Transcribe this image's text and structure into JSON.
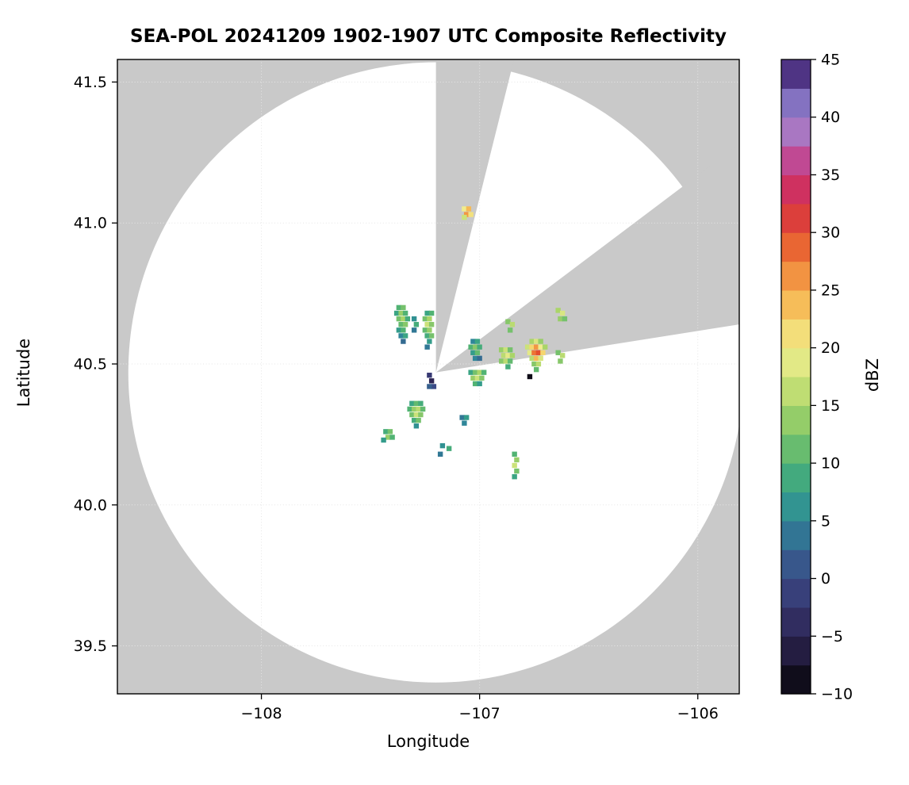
{
  "chart_data": {
    "type": "heatmap",
    "title": "SEA-POL 20241209 1902-1907 UTC Composite Reflectivity",
    "xlabel": "Longitude",
    "ylabel": "Latitude",
    "xlim": [
      -108.66,
      -105.81
    ],
    "ylim": [
      39.33,
      41.58
    ],
    "grid": true,
    "xticks": [
      {
        "v": -108,
        "label": "−108"
      },
      {
        "v": -107,
        "label": "−107"
      },
      {
        "v": -106,
        "label": "−106"
      }
    ],
    "yticks": [
      {
        "v": 39.5,
        "label": "39.5"
      },
      {
        "v": 40.0,
        "label": "40.0"
      },
      {
        "v": 40.5,
        "label": "40.5"
      },
      {
        "v": 41.0,
        "label": "41.0"
      },
      {
        "v": 41.5,
        "label": "41.5"
      }
    ],
    "background_outside_range": "#c9c9c9",
    "background_inside_range": "#ffffff",
    "radar": {
      "center_lon": -107.2,
      "center_lat": 40.47,
      "range_lon_deg": 1.41,
      "range_lat_deg": 1.1,
      "blocked_sectors_azimuth_deg": [
        [
          0,
          14
        ],
        [
          53,
          81
        ]
      ]
    },
    "colorbar": {
      "label": "dBZ",
      "min": -10,
      "max": 45,
      "step": 2.5,
      "ticks": [
        {
          "v": -10,
          "label": "−10"
        },
        {
          "v": -5,
          "label": "−5"
        },
        {
          "v": 0,
          "label": "0"
        },
        {
          "v": 5,
          "label": "5"
        },
        {
          "v": 10,
          "label": "10"
        },
        {
          "v": 15,
          "label": "15"
        },
        {
          "v": 20,
          "label": "20"
        },
        {
          "v": 25,
          "label": "25"
        },
        {
          "v": 30,
          "label": "30"
        },
        {
          "v": 35,
          "label": "35"
        },
        {
          "v": 40,
          "label": "40"
        },
        {
          "v": 45,
          "label": "45"
        }
      ],
      "stops": [
        [
          -10,
          "#050505"
        ],
        [
          -7.5,
          "#1b1530"
        ],
        [
          -5,
          "#2c2452"
        ],
        [
          -2.5,
          "#35356e"
        ],
        [
          0,
          "#3a4a86"
        ],
        [
          2.5,
          "#35648f"
        ],
        [
          5,
          "#2f8699"
        ],
        [
          7.5,
          "#35a188"
        ],
        [
          10,
          "#51b373"
        ],
        [
          12.5,
          "#7ec46a"
        ],
        [
          15,
          "#aad568"
        ],
        [
          17.5,
          "#d3e57e"
        ],
        [
          20,
          "#f0ec8d"
        ],
        [
          22.5,
          "#f6d066"
        ],
        [
          25,
          "#f5a94b"
        ],
        [
          27.5,
          "#ef7d38"
        ],
        [
          30,
          "#e34f2d"
        ],
        [
          32.5,
          "#d52f48"
        ],
        [
          35,
          "#c93377"
        ],
        [
          37.5,
          "#b65fae"
        ],
        [
          40,
          "#9c8ed6"
        ],
        [
          42.5,
          "#6b55ab"
        ],
        [
          45,
          "#33135c"
        ]
      ]
    },
    "echoes_lon_lat_dbz": [
      [
        -107.07,
        41.05,
        20
      ],
      [
        -107.05,
        41.05,
        24
      ],
      [
        -107.06,
        41.03,
        26
      ],
      [
        -107.04,
        41.03,
        21
      ],
      [
        -107.07,
        41.02,
        17
      ],
      [
        -107.37,
        40.7,
        10
      ],
      [
        -107.35,
        40.7,
        12
      ],
      [
        -107.38,
        40.68,
        8
      ],
      [
        -107.36,
        40.68,
        14
      ],
      [
        -107.34,
        40.68,
        10
      ],
      [
        -107.37,
        40.66,
        12
      ],
      [
        -107.35,
        40.66,
        15
      ],
      [
        -107.33,
        40.66,
        9
      ],
      [
        -107.36,
        40.64,
        11
      ],
      [
        -107.34,
        40.64,
        13
      ],
      [
        -107.37,
        40.62,
        7
      ],
      [
        -107.35,
        40.62,
        10
      ],
      [
        -107.36,
        40.6,
        5
      ],
      [
        -107.34,
        40.6,
        8
      ],
      [
        -107.35,
        40.58,
        3
      ],
      [
        -107.3,
        40.66,
        6
      ],
      [
        -107.29,
        40.64,
        9
      ],
      [
        -107.3,
        40.62,
        4
      ],
      [
        -107.24,
        40.68,
        8
      ],
      [
        -107.22,
        40.68,
        10
      ],
      [
        -107.25,
        40.66,
        12
      ],
      [
        -107.23,
        40.66,
        15
      ],
      [
        -107.24,
        40.64,
        17
      ],
      [
        -107.22,
        40.64,
        13
      ],
      [
        -107.25,
        40.62,
        11
      ],
      [
        -107.23,
        40.62,
        14
      ],
      [
        -107.24,
        40.6,
        9
      ],
      [
        -107.22,
        40.6,
        12
      ],
      [
        -107.23,
        40.58,
        7
      ],
      [
        -107.24,
        40.56,
        4
      ],
      [
        -107.03,
        40.58,
        5
      ],
      [
        -107.01,
        40.58,
        8
      ],
      [
        -107.04,
        40.56,
        10
      ],
      [
        -107.02,
        40.56,
        13
      ],
      [
        -107.0,
        40.56,
        9
      ],
      [
        -107.03,
        40.54,
        7
      ],
      [
        -107.01,
        40.54,
        11
      ],
      [
        -107.02,
        40.52,
        5
      ],
      [
        -107.0,
        40.52,
        3
      ],
      [
        -106.9,
        40.55,
        14
      ],
      [
        -106.88,
        40.55,
        17
      ],
      [
        -106.86,
        40.55,
        12
      ],
      [
        -106.89,
        40.53,
        16
      ],
      [
        -106.87,
        40.53,
        19
      ],
      [
        -106.85,
        40.53,
        15
      ],
      [
        -106.9,
        40.51,
        13
      ],
      [
        -106.88,
        40.51,
        16
      ],
      [
        -106.86,
        40.51,
        11
      ],
      [
        -106.87,
        40.49,
        9
      ],
      [
        -106.76,
        40.58,
        15
      ],
      [
        -106.74,
        40.58,
        18
      ],
      [
        -106.72,
        40.58,
        14
      ],
      [
        -106.78,
        40.56,
        17
      ],
      [
        -106.76,
        40.56,
        22
      ],
      [
        -106.74,
        40.56,
        26
      ],
      [
        -106.72,
        40.56,
        20
      ],
      [
        -106.7,
        40.56,
        15
      ],
      [
        -106.77,
        40.54,
        19
      ],
      [
        -106.75,
        40.54,
        28
      ],
      [
        -106.73,
        40.54,
        30
      ],
      [
        -106.71,
        40.54,
        22
      ],
      [
        -106.76,
        40.52,
        16
      ],
      [
        -106.74,
        40.52,
        24
      ],
      [
        -106.72,
        40.52,
        18
      ],
      [
        -106.75,
        40.5,
        13
      ],
      [
        -106.73,
        40.5,
        16
      ],
      [
        -106.74,
        40.48,
        11
      ],
      [
        -106.64,
        40.54,
        12
      ],
      [
        -106.62,
        40.53,
        16
      ],
      [
        -106.63,
        40.51,
        13
      ],
      [
        -106.64,
        40.69,
        15
      ],
      [
        -106.62,
        40.68,
        18
      ],
      [
        -106.63,
        40.66,
        14
      ],
      [
        -106.61,
        40.66,
        12
      ],
      [
        -106.87,
        40.65,
        13
      ],
      [
        -106.85,
        40.64,
        16
      ],
      [
        -106.86,
        40.62,
        12
      ],
      [
        -107.23,
        40.46,
        -2
      ],
      [
        -107.22,
        40.44,
        -5
      ],
      [
        -107.21,
        40.42,
        0
      ],
      [
        -107.23,
        40.42,
        2
      ],
      [
        -107.04,
        40.47,
        8
      ],
      [
        -107.02,
        40.47,
        12
      ],
      [
        -107.0,
        40.47,
        15
      ],
      [
        -106.98,
        40.47,
        10
      ],
      [
        -107.03,
        40.45,
        14
      ],
      [
        -107.01,
        40.45,
        17
      ],
      [
        -106.99,
        40.45,
        13
      ],
      [
        -107.02,
        40.43,
        10
      ],
      [
        -107.0,
        40.43,
        7
      ],
      [
        -106.77,
        40.455,
        -9
      ],
      [
        -107.31,
        40.36,
        8
      ],
      [
        -107.29,
        40.36,
        11
      ],
      [
        -107.27,
        40.36,
        9
      ],
      [
        -107.32,
        40.34,
        10
      ],
      [
        -107.3,
        40.34,
        14
      ],
      [
        -107.28,
        40.34,
        16
      ],
      [
        -107.26,
        40.34,
        11
      ],
      [
        -107.31,
        40.32,
        12
      ],
      [
        -107.29,
        40.32,
        17
      ],
      [
        -107.27,
        40.32,
        13
      ],
      [
        -107.3,
        40.3,
        9
      ],
      [
        -107.28,
        40.3,
        12
      ],
      [
        -107.29,
        40.28,
        6
      ],
      [
        -107.43,
        40.26,
        9
      ],
      [
        -107.41,
        40.26,
        12
      ],
      [
        -107.42,
        40.24,
        14
      ],
      [
        -107.4,
        40.24,
        10
      ],
      [
        -107.44,
        40.23,
        7
      ],
      [
        -107.08,
        40.31,
        4
      ],
      [
        -107.06,
        40.31,
        7
      ],
      [
        -107.07,
        40.29,
        5
      ],
      [
        -107.17,
        40.21,
        6
      ],
      [
        -107.14,
        40.2,
        9
      ],
      [
        -107.18,
        40.18,
        4
      ],
      [
        -106.84,
        40.18,
        10
      ],
      [
        -106.83,
        40.16,
        14
      ],
      [
        -106.84,
        40.14,
        17
      ],
      [
        -106.83,
        40.12,
        12
      ],
      [
        -106.84,
        40.1,
        8
      ]
    ]
  }
}
